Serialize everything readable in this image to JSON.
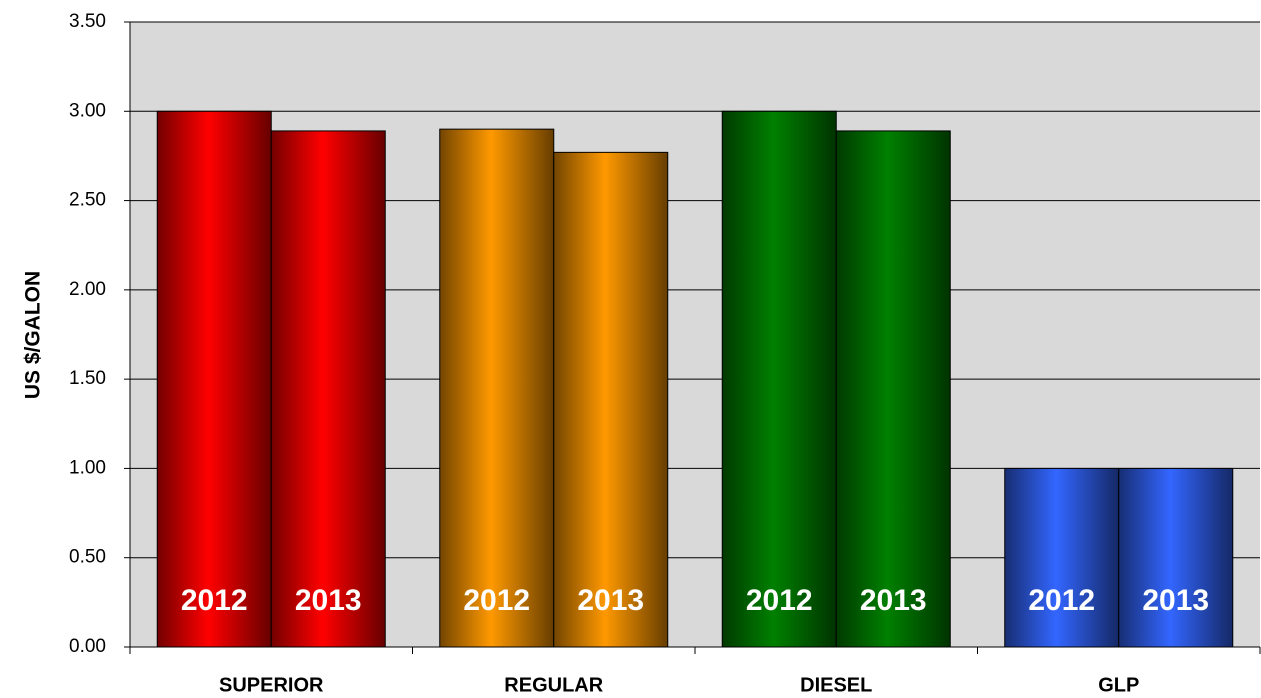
{
  "chart_data": {
    "type": "bar",
    "y_label": "US $/GALON",
    "categories": [
      "SUPERIOR",
      "REGULAR",
      "DIESEL",
      "GLP"
    ],
    "colors": [
      "#ff0000",
      "#ff9900",
      "#008000",
      "#3366ff"
    ],
    "series": [
      {
        "name": "2012",
        "values": [
          3.0,
          2.9,
          3.0,
          1.0
        ]
      },
      {
        "name": "2013",
        "values": [
          2.89,
          2.77,
          2.89,
          1.0
        ]
      }
    ],
    "ylim": [
      0,
      3.5
    ],
    "yticks": [
      {
        "value": 0,
        "label": "0.00"
      },
      {
        "value": 0.5,
        "label": "0.50"
      },
      {
        "value": 1,
        "label": "1.00"
      },
      {
        "value": 1.5,
        "label": "1.50"
      },
      {
        "value": 2,
        "label": "2.00"
      },
      {
        "value": 2.5,
        "label": "2.50"
      },
      {
        "value": 3,
        "label": "3.00"
      },
      {
        "value": 3.5,
        "label": "3.50"
      }
    ],
    "grid": true
  }
}
